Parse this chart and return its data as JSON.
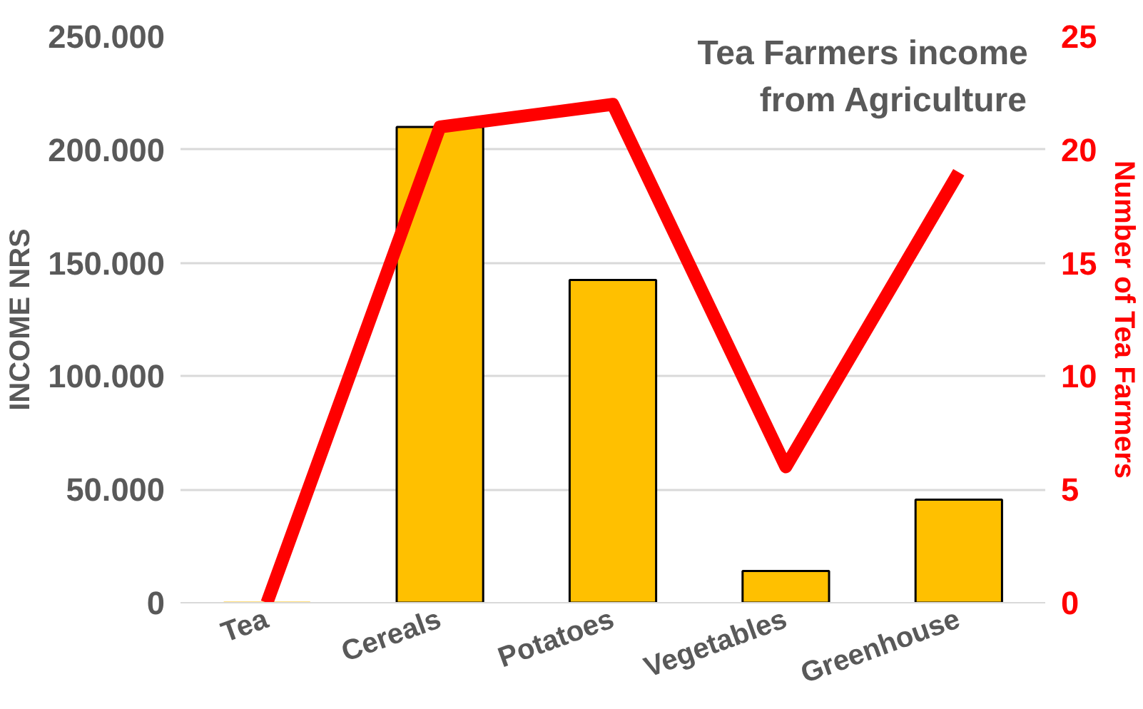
{
  "chart_data": {
    "type": "bar",
    "title": "Tea Farmers income\nfrom Agriculture",
    "categories": [
      "Tea",
      "Cereals",
      "Potatoes",
      "Vegetables",
      "Greenhouse"
    ],
    "series": [
      {
        "color": "#ffc000",
        "values": [
          0,
          210000,
          142500,
          14000,
          45500
        ]
      },
      {
        "type": "line",
        "axis": "y2",
        "color": "#ff0000",
        "values": [
          0,
          21,
          22,
          6,
          19
        ]
      }
    ],
    "ylabel": "INCOME NRS",
    "y2label": "Number of Tea Farmers",
    "ylim": [
      0,
      250000
    ],
    "yticks": [
      {
        "value": 0,
        "label": "0"
      },
      {
        "value": 50000,
        "label": "50.000"
      },
      {
        "value": 100000,
        "label": "100.000"
      },
      {
        "value": 150000,
        "label": "150.000"
      },
      {
        "value": 200000,
        "label": "200.000"
      },
      {
        "value": 250000,
        "label": "250.000"
      }
    ],
    "y2lim": [
      0,
      25
    ],
    "y2ticks": [
      0,
      5,
      10,
      15,
      20,
      25
    ],
    "grid": "y",
    "line_style": "solid"
  }
}
